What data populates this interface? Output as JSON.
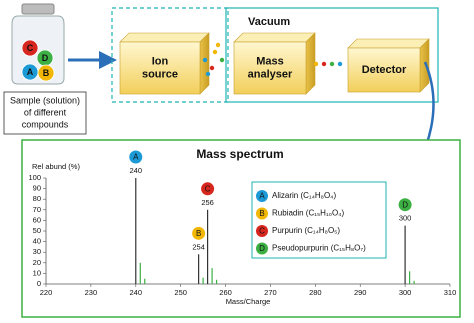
{
  "diagram": {
    "jar_balls": [
      {
        "label": "C",
        "color": "#d7261e"
      },
      {
        "label": "D",
        "color": "#3cb043"
      },
      {
        "label": "A",
        "color": "#1c9ad6"
      },
      {
        "label": "B",
        "color": "#f2b705"
      }
    ],
    "sample_lines": [
      "Sample (solution)",
      "of different",
      "compounds"
    ],
    "vacuum_label": "Vacuum",
    "stages": [
      {
        "lines": [
          "Ion",
          "source"
        ]
      },
      {
        "lines": [
          "Mass",
          "analyser"
        ]
      },
      {
        "lines": [
          "Detector"
        ]
      }
    ]
  },
  "chart_data": {
    "type": "stem",
    "title": "Mass spectrum",
    "y_label": "Rel abund (%)",
    "x_label": "Mass/Charge",
    "xlim": [
      220,
      310
    ],
    "xticks": [
      220,
      230,
      240,
      250,
      260,
      270,
      280,
      290,
      300,
      310
    ],
    "ylim": [
      0,
      100
    ],
    "yticks": [
      0,
      10,
      20,
      30,
      40,
      50,
      60,
      70,
      80,
      90,
      100
    ],
    "stem_color": "#333333",
    "minor_stem_color": "#3cb043",
    "series": [
      {
        "name": "Alizarin (C₁₄H₈O₄)",
        "letter": "A",
        "color": "#1c9ad6",
        "x": [
          240,
          241,
          242
        ],
        "values": [
          100,
          20,
          5
        ]
      },
      {
        "name": "Rubiadin (C₁₅H₁₀O₄)",
        "letter": "B",
        "color": "#f2b705",
        "x": [
          254,
          255
        ],
        "values": [
          28,
          6
        ]
      },
      {
        "name": "Purpurin (C₁₄H₈O₅)",
        "letter": "C",
        "color": "#d7261e",
        "x": [
          256,
          257,
          258
        ],
        "values": [
          70,
          15,
          4
        ]
      },
      {
        "name": "Pseudopurpurin (C₁₅H₈O₇)",
        "letter": "D",
        "color": "#3cb043",
        "x": [
          300,
          301,
          302
        ],
        "values": [
          55,
          12,
          3
        ]
      }
    ]
  }
}
